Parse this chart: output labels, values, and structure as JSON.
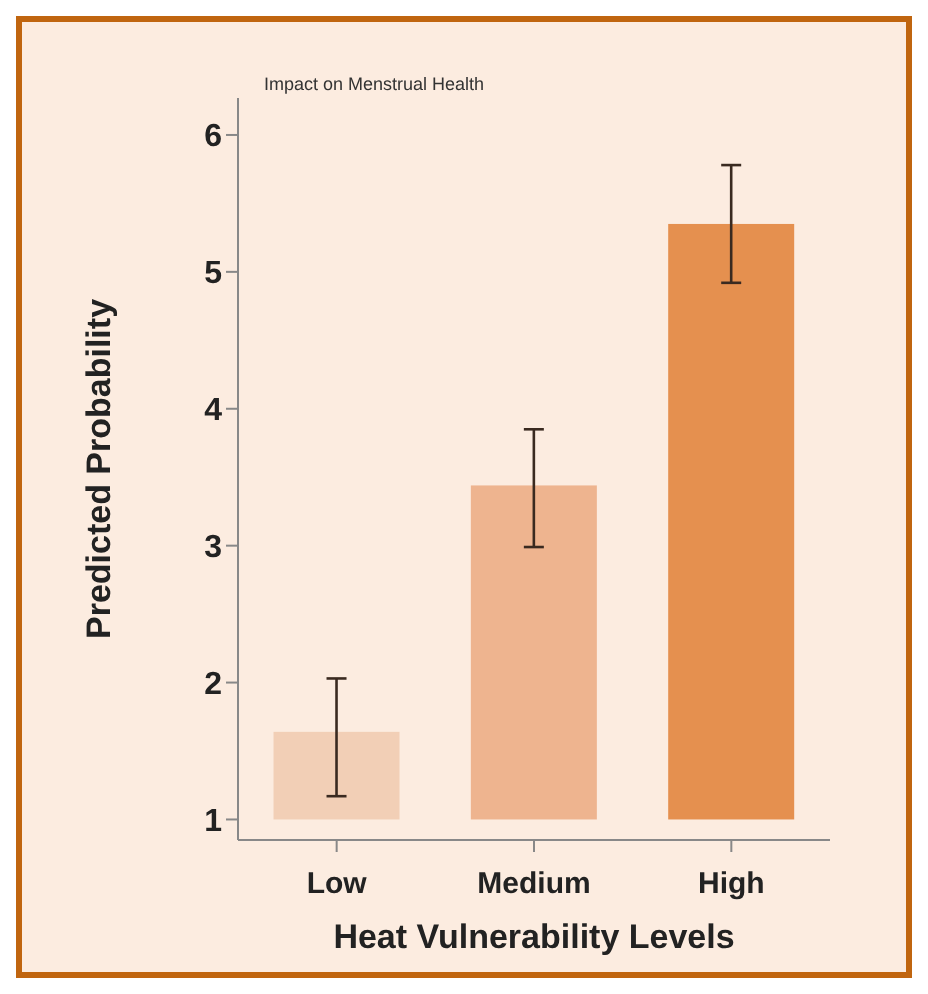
{
  "chart_data": {
    "type": "bar",
    "title": "Impact on Menstrual Health",
    "xlabel": "Heat Vulnerability Levels",
    "ylabel": "Predicted Probability",
    "categories": [
      "Low",
      "Medium",
      "High"
    ],
    "base": [
      1,
      1,
      1
    ],
    "values": [
      0.64,
      2.44,
      4.35
    ],
    "colors": [
      "#f2cfb6",
      "#eeb48f",
      "#e5904f"
    ],
    "errors": [
      [
        1.17,
        2.03
      ],
      [
        2.99,
        3.85
      ],
      [
        4.92,
        5.78
      ]
    ],
    "ylim": [
      0.85,
      6.27
    ],
    "yticks": [
      1,
      2,
      3,
      4,
      5,
      6
    ],
    "grid": false,
    "legend": false
  }
}
